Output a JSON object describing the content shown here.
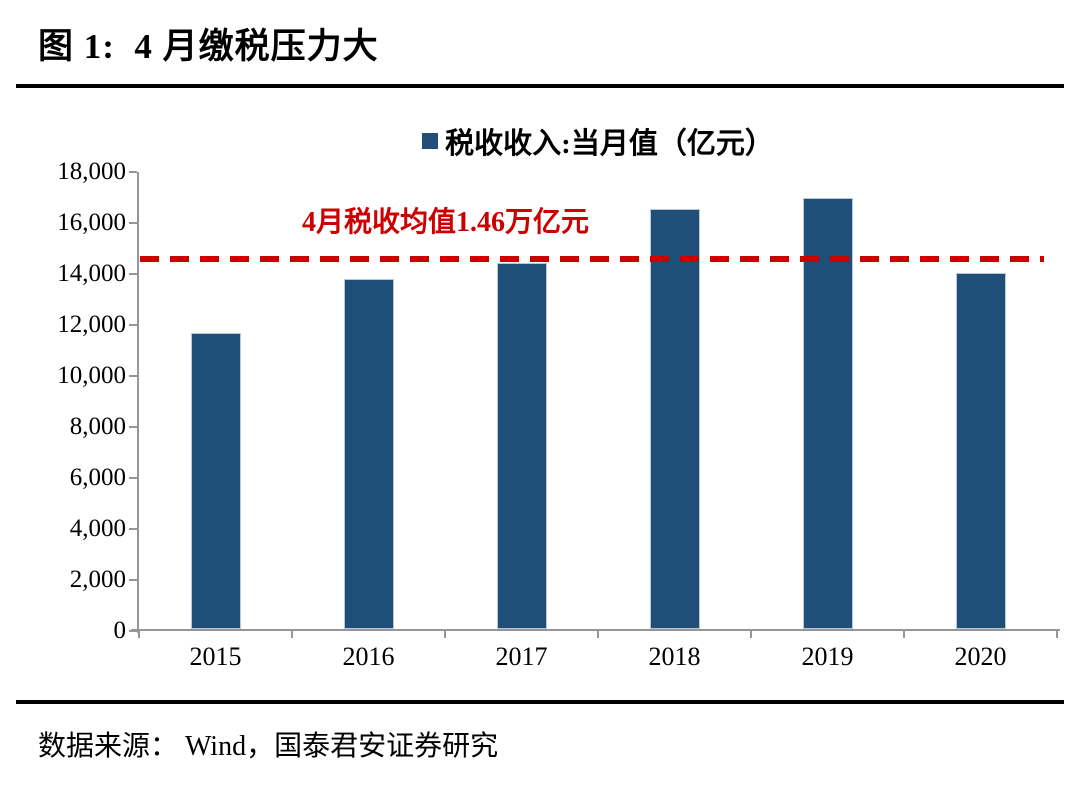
{
  "figure": {
    "title": "图 1:  4 月缴税压力大",
    "source": "数据来源： Wind，国泰君安证券研究"
  },
  "chart_data": {
    "type": "bar",
    "legend": "税收收入:当月值（亿元）",
    "legend_position": "top-center",
    "categories": [
      "2015",
      "2016",
      "2017",
      "2018",
      "2019",
      "2020"
    ],
    "values": [
      11700,
      13800,
      14450,
      16550,
      17000,
      14050
    ],
    "ylim": [
      0,
      18000
    ],
    "y_tick_values": [
      0,
      2000,
      4000,
      6000,
      8000,
      10000,
      12000,
      14000,
      16000,
      18000
    ],
    "y_tick_labels": [
      "0",
      "2,000",
      "4,000",
      "6,000",
      "8,000",
      "10,000",
      "12,000",
      "14,000",
      "16,000",
      "18,000"
    ],
    "mean_line": {
      "label": "4月税收均值1.46万亿元",
      "value": 14600,
      "style": "dashed"
    },
    "grid": false,
    "colors": {
      "bar": "#1F4E79",
      "mean_line": "#CC0000",
      "axis": "#969696",
      "text": "#000000"
    }
  }
}
